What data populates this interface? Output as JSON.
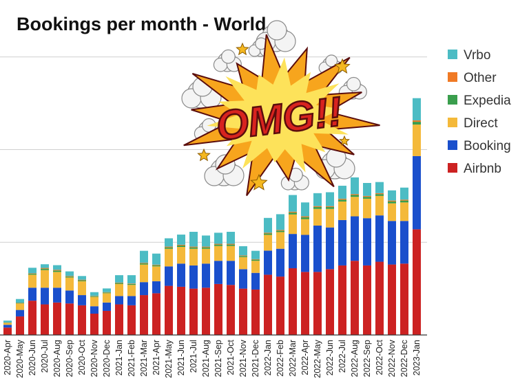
{
  "chart_data": {
    "type": "bar",
    "stacked": true,
    "title": "Bookings per month - World",
    "xlabel": "",
    "ylabel": "",
    "grid": true,
    "legend_position": "right",
    "categories": [
      "2020-Apr",
      "2020-May",
      "2020-Jun",
      "2020-Jul",
      "2020-Aug",
      "2020-Sep",
      "2020-Oct",
      "2020-Nov",
      "2020-Dec",
      "2021-Jan",
      "2021-Feb",
      "2021-Mar",
      "2021-Apr",
      "2021-May",
      "2021-Jun",
      "2021-Jul",
      "2021-Aug",
      "2021-Sep",
      "2021-Oct",
      "2021-Nov",
      "2021-Dec",
      "2022-Jan",
      "2022-Feb",
      "2022-Mar",
      "2022-Apr",
      "2022-May",
      "2022-Jun",
      "2022-Jul",
      "2022-Aug",
      "2022-Sep",
      "2022-Oct",
      "2022-Nov",
      "2022-Dec",
      "2023-Jan"
    ],
    "ylim": [
      0,
      3.05
    ],
    "series": [
      {
        "name": "Airbnb",
        "color": "#cc2222",
        "values": [
          0.08,
          0.2,
          0.37,
          0.33,
          0.35,
          0.34,
          0.32,
          0.23,
          0.26,
          0.33,
          0.32,
          0.43,
          0.45,
          0.53,
          0.52,
          0.5,
          0.51,
          0.55,
          0.54,
          0.5,
          0.49,
          0.65,
          0.63,
          0.72,
          0.68,
          0.68,
          0.71,
          0.75,
          0.8,
          0.75,
          0.79,
          0.76,
          0.77,
          1.14
        ]
      },
      {
        "name": "Booking",
        "color": "#1a4fcc",
        "values": [
          0.03,
          0.07,
          0.14,
          0.18,
          0.16,
          0.14,
          0.11,
          0.08,
          0.09,
          0.09,
          0.1,
          0.14,
          0.13,
          0.21,
          0.25,
          0.25,
          0.26,
          0.25,
          0.26,
          0.21,
          0.18,
          0.26,
          0.3,
          0.37,
          0.4,
          0.5,
          0.45,
          0.49,
          0.48,
          0.51,
          0.5,
          0.47,
          0.46,
          0.79
        ]
      },
      {
        "name": "Direct",
        "color": "#f4b93a",
        "values": [
          0.02,
          0.07,
          0.14,
          0.19,
          0.17,
          0.14,
          0.15,
          0.1,
          0.1,
          0.13,
          0.12,
          0.19,
          0.16,
          0.19,
          0.18,
          0.18,
          0.16,
          0.16,
          0.16,
          0.13,
          0.13,
          0.17,
          0.18,
          0.21,
          0.17,
          0.18,
          0.2,
          0.2,
          0.21,
          0.21,
          0.21,
          0.19,
          0.2,
          0.34
        ]
      },
      {
        "name": "Expedia",
        "color": "#3a9e4d",
        "values": [
          0.003,
          0.005,
          0.01,
          0.015,
          0.015,
          0.01,
          0.01,
          0.008,
          0.008,
          0.01,
          0.01,
          0.012,
          0.012,
          0.015,
          0.015,
          0.015,
          0.015,
          0.015,
          0.015,
          0.012,
          0.012,
          0.015,
          0.015,
          0.02,
          0.02,
          0.02,
          0.02,
          0.02,
          0.02,
          0.02,
          0.02,
          0.02,
          0.02,
          0.03
        ]
      },
      {
        "name": "Other",
        "color": "#f07a25",
        "values": [
          0.002,
          0.003,
          0.005,
          0.008,
          0.008,
          0.006,
          0.006,
          0.004,
          0.004,
          0.005,
          0.005,
          0.006,
          0.006,
          0.008,
          0.008,
          0.008,
          0.008,
          0.008,
          0.008,
          0.006,
          0.006,
          0.008,
          0.008,
          0.01,
          0.01,
          0.01,
          0.01,
          0.01,
          0.01,
          0.01,
          0.01,
          0.01,
          0.01,
          0.015
        ]
      },
      {
        "name": "Vrbo",
        "color": "#4cbcc4",
        "values": [
          0.02,
          0.04,
          0.06,
          0.04,
          0.05,
          0.05,
          0.04,
          0.04,
          0.04,
          0.08,
          0.09,
          0.13,
          0.12,
          0.09,
          0.11,
          0.16,
          0.12,
          0.12,
          0.13,
          0.1,
          0.09,
          0.16,
          0.17,
          0.18,
          0.15,
          0.14,
          0.15,
          0.14,
          0.18,
          0.14,
          0.12,
          0.11,
          0.13,
          0.24
        ]
      }
    ]
  },
  "sticker": {
    "text": "OMG!!",
    "colors": {
      "burst_outer": "#f7a51d",
      "burst_inner": "#fde25a",
      "letters": "#d8231f",
      "outline": "#5a0d0d",
      "star": "#f5b820",
      "smoke": "#f4f4f4"
    }
  },
  "colors": {
    "grid": "#cfcfcf",
    "axis": "#333333",
    "text": "#222222"
  }
}
